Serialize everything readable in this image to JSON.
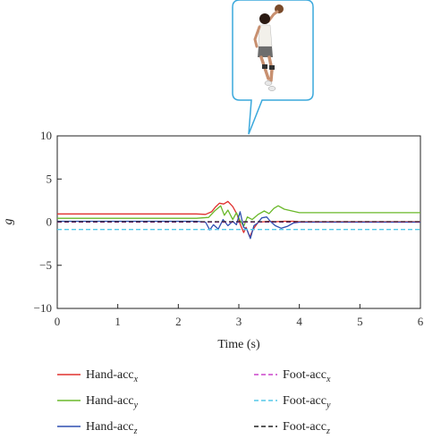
{
  "chart_data": {
    "type": "line",
    "title": "",
    "xlabel": "Time (s)",
    "ylabel": "g",
    "xlim": [
      0,
      6
    ],
    "ylim": [
      -10,
      10
    ],
    "xticks": [
      "0",
      "1",
      "2",
      "3",
      "4",
      "5",
      "6"
    ],
    "yticks": [
      "10",
      "5",
      "0",
      "−5",
      "−10"
    ],
    "grid": false,
    "legend_position": "bottom",
    "inset_image": "person jumping with ball (speech-bubble callout above plot)",
    "series": [
      {
        "name": "Hand-acc",
        "sub": "x",
        "color": "#e0312f",
        "dash": "solid",
        "points": [
          [
            0,
            0.95
          ],
          [
            2.3,
            0.95
          ],
          [
            2.45,
            0.9
          ],
          [
            2.55,
            1.2
          ],
          [
            2.62,
            1.8
          ],
          [
            2.68,
            2.2
          ],
          [
            2.75,
            2.1
          ],
          [
            2.82,
            2.4
          ],
          [
            2.9,
            1.8
          ],
          [
            2.97,
            0.9
          ],
          [
            3.02,
            -0.2
          ],
          [
            3.08,
            -1.2
          ],
          [
            3.12,
            -0.6
          ],
          [
            3.18,
            -1.7
          ],
          [
            3.24,
            -0.8
          ],
          [
            3.32,
            0.0
          ],
          [
            3.42,
            0.05
          ],
          [
            3.5,
            0.1
          ],
          [
            3.6,
            0.05
          ],
          [
            3.75,
            0.1
          ],
          [
            3.9,
            0.1
          ],
          [
            4.0,
            0.05
          ],
          [
            6,
            0.05
          ]
        ]
      },
      {
        "name": "Hand-acc",
        "sub": "y",
        "color": "#6ab82a",
        "dash": "solid",
        "points": [
          [
            0,
            0.45
          ],
          [
            2.3,
            0.45
          ],
          [
            2.5,
            0.55
          ],
          [
            2.6,
            1.3
          ],
          [
            2.7,
            1.9
          ],
          [
            2.76,
            0.8
          ],
          [
            2.82,
            1.4
          ],
          [
            2.9,
            0.3
          ],
          [
            2.96,
            1.1
          ],
          [
            3.02,
            0.2
          ],
          [
            3.08,
            -0.5
          ],
          [
            3.14,
            0.6
          ],
          [
            3.22,
            0.3
          ],
          [
            3.32,
            0.9
          ],
          [
            3.42,
            1.3
          ],
          [
            3.5,
            1.0
          ],
          [
            3.58,
            1.6
          ],
          [
            3.65,
            1.9
          ],
          [
            3.75,
            1.5
          ],
          [
            3.88,
            1.3
          ],
          [
            4.0,
            1.1
          ],
          [
            6,
            1.1
          ]
        ]
      },
      {
        "name": "Hand-acc",
        "sub": "z",
        "color": "#2f4fb0",
        "dash": "solid",
        "points": [
          [
            0,
            0.1
          ],
          [
            2.3,
            0.1
          ],
          [
            2.45,
            0.0
          ],
          [
            2.52,
            -0.9
          ],
          [
            2.58,
            -0.3
          ],
          [
            2.66,
            -0.8
          ],
          [
            2.74,
            0.3
          ],
          [
            2.82,
            -0.4
          ],
          [
            2.9,
            0.1
          ],
          [
            2.96,
            -0.3
          ],
          [
            3.02,
            1.2
          ],
          [
            3.08,
            -0.6
          ],
          [
            3.13,
            -0.8
          ],
          [
            3.19,
            -1.9
          ],
          [
            3.25,
            -0.4
          ],
          [
            3.31,
            -0.1
          ],
          [
            3.38,
            0.5
          ],
          [
            3.46,
            0.6
          ],
          [
            3.52,
            0.1
          ],
          [
            3.6,
            -0.4
          ],
          [
            3.7,
            -0.7
          ],
          [
            3.8,
            -0.5
          ],
          [
            3.9,
            -0.1
          ],
          [
            4.0,
            0.0
          ],
          [
            6,
            0.0
          ]
        ]
      },
      {
        "name": "Foot-acc",
        "sub": "x",
        "color": "#cc44cc",
        "dash": "dashed",
        "points": [
          [
            0,
            0.0
          ],
          [
            6,
            0.0
          ]
        ]
      },
      {
        "name": "Foot-acc",
        "sub": "y",
        "color": "#55c8e8",
        "dash": "dashed",
        "points": [
          [
            0,
            -0.85
          ],
          [
            6,
            -0.85
          ]
        ]
      },
      {
        "name": "Foot-acc",
        "sub": "z",
        "color": "#222222",
        "dash": "dashed",
        "points": [
          [
            0,
            0.05
          ],
          [
            6,
            0.05
          ]
        ]
      }
    ]
  }
}
